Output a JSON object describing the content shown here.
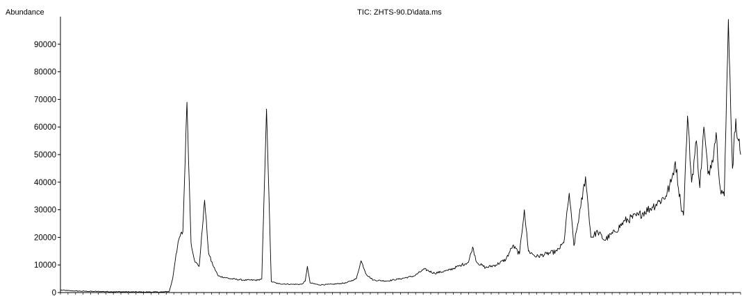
{
  "chart_data": {
    "type": "line",
    "title": "TIC: ZHTS-90.D\\data.ms",
    "ylabel": "Abundance",
    "xlabel": "",
    "ylim": [
      0,
      100000
    ],
    "xlim": [
      0,
      100
    ],
    "yticks": [
      0,
      10000,
      20000,
      30000,
      40000,
      50000,
      60000,
      70000,
      80000,
      90000
    ],
    "grid": false,
    "line_color": "#000000",
    "series": [
      {
        "values": [
          [
            0,
            900
          ],
          [
            1,
            700
          ],
          [
            2,
            600
          ],
          [
            3,
            500
          ],
          [
            5,
            400
          ],
          [
            8,
            300
          ],
          [
            12,
            200
          ],
          [
            15,
            200
          ],
          [
            16,
            400
          ],
          [
            16.5,
            5000
          ],
          [
            17,
            14000
          ],
          [
            17.5,
            20000
          ],
          [
            18,
            22000
          ],
          [
            18.6,
            69000
          ],
          [
            19.2,
            18000
          ],
          [
            19.8,
            11000
          ],
          [
            20.4,
            9500
          ],
          [
            21.2,
            33500
          ],
          [
            21.8,
            14000
          ],
          [
            22.4,
            10000
          ],
          [
            23.2,
            6000
          ],
          [
            25,
            5000
          ],
          [
            27,
            4500
          ],
          [
            29,
            4500
          ],
          [
            29.6,
            5000
          ],
          [
            30.3,
            66500
          ],
          [
            31,
            4000
          ],
          [
            32,
            3200
          ],
          [
            34,
            3000
          ],
          [
            35.5,
            3000
          ],
          [
            36,
            4200
          ],
          [
            36.3,
            9500
          ],
          [
            36.7,
            3500
          ],
          [
            38,
            2800
          ],
          [
            40,
            3000
          ],
          [
            42,
            3500
          ],
          [
            43.5,
            5000
          ],
          [
            44.2,
            11500
          ],
          [
            45,
            6500
          ],
          [
            46,
            4500
          ],
          [
            48,
            4200
          ],
          [
            50,
            5000
          ],
          [
            52,
            6000
          ],
          [
            53.5,
            8500
          ],
          [
            55,
            7000
          ],
          [
            57,
            8000
          ],
          [
            59,
            10000
          ],
          [
            60,
            11000
          ],
          [
            60.6,
            16500
          ],
          [
            61.2,
            11000
          ],
          [
            62.5,
            9000
          ],
          [
            64,
            10000
          ],
          [
            65.5,
            12000
          ],
          [
            66.5,
            17000
          ],
          [
            67.5,
            14000
          ],
          [
            68.2,
            30000
          ],
          [
            68.8,
            15000
          ],
          [
            70,
            13000
          ],
          [
            71.5,
            14000
          ],
          [
            73,
            15000
          ],
          [
            74,
            18000
          ],
          [
            74.8,
            36000
          ],
          [
            75.5,
            17000
          ],
          [
            76.5,
            31000
          ],
          [
            77.2,
            42000
          ],
          [
            78,
            20000
          ],
          [
            79,
            22000
          ],
          [
            80,
            19000
          ],
          [
            81.5,
            22000
          ],
          [
            83,
            26000
          ],
          [
            85,
            28000
          ],
          [
            87,
            31000
          ],
          [
            88,
            33000
          ],
          [
            89,
            35000
          ],
          [
            89.8,
            40000
          ],
          [
            90.4,
            47500
          ],
          [
            91.2,
            32000
          ],
          [
            91.6,
            28000
          ],
          [
            92.2,
            64000
          ],
          [
            92.8,
            40000
          ],
          [
            93.5,
            55000
          ],
          [
            94,
            38000
          ],
          [
            94.6,
            60000
          ],
          [
            95.2,
            43000
          ],
          [
            95.8,
            48000
          ],
          [
            96.4,
            58000
          ],
          [
            97,
            38000
          ],
          [
            97.6,
            35000
          ],
          [
            98.2,
            99000
          ],
          [
            98.8,
            45000
          ],
          [
            99.3,
            63000
          ],
          [
            99.7,
            55000
          ],
          [
            100,
            50000
          ]
        ]
      }
    ]
  }
}
